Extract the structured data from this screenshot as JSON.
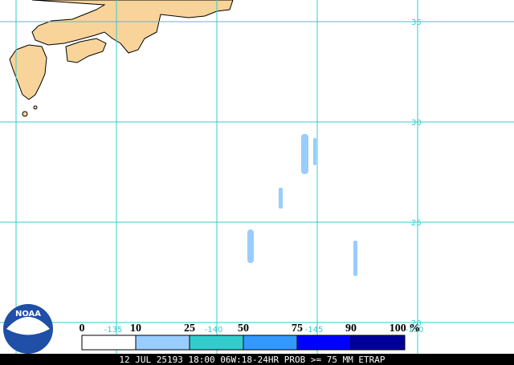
{
  "map": {
    "lat_labels": [
      "35",
      "30",
      "25",
      "20"
    ],
    "lon_labels": [
      "-135",
      "-140",
      "-145",
      "-150"
    ],
    "grid_color": "#33cccc",
    "land_color": "#f8d49a"
  },
  "legend": {
    "labels": [
      "0",
      "10",
      "25",
      "50",
      "75",
      "90",
      "100 %"
    ],
    "colors": [
      "#ffffff",
      "#99ccff",
      "#33cccc",
      "#3399ff",
      "#0000ff",
      "#000099"
    ]
  },
  "logo": "NOAA",
  "footer": "12 JUL 25193 18:00 06W:18-24HR PROB >= 75 MM ETRAP"
}
